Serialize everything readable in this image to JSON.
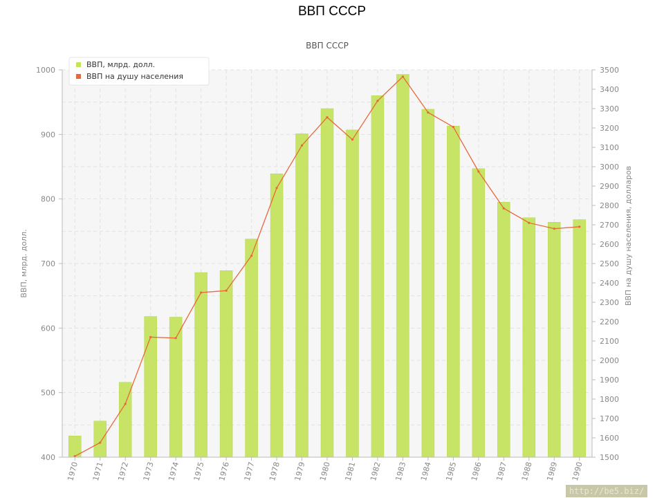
{
  "page_title": "ВВП СССР",
  "watermark": "http://be5.biz/",
  "colors": {
    "bar_fill": "#c4e35a",
    "bar_edge": "#b2d43e",
    "line": "#e8683a",
    "axis_text": "#888888",
    "grid": "#e2e2e2",
    "plot_bg": "#f6f6f6"
  },
  "chart_data": {
    "type": "bar",
    "title": "ВВП СССР",
    "categories": [
      "1970",
      "1971",
      "1972",
      "1973",
      "1974",
      "1975",
      "1976",
      "1977",
      "1978",
      "1979",
      "1980",
      "1981",
      "1982",
      "1983",
      "1984",
      "1985",
      "1986",
      "1987",
      "1988",
      "1989",
      "1990"
    ],
    "series": [
      {
        "name": "ВВП, млрд. долл.",
        "type": "bar",
        "axis": "left",
        "color": "#c4e35a",
        "values": [
          433,
          456,
          516,
          618,
          617,
          686,
          689,
          738,
          839,
          901,
          940,
          907,
          960,
          993,
          939,
          913,
          847,
          795,
          771,
          764,
          768
        ]
      },
      {
        "name": "ВВП на душу населения",
        "type": "line",
        "axis": "right",
        "color": "#e8683a",
        "values": [
          1505,
          1575,
          1775,
          2120,
          2115,
          2350,
          2360,
          2540,
          2890,
          3110,
          3255,
          3140,
          3340,
          3465,
          3280,
          3205,
          2975,
          2785,
          2710,
          2680,
          2690
        ]
      }
    ],
    "ylabel": "ВВП, млрд. долл.",
    "ylim": [
      400,
      1000
    ],
    "y_ticks": [
      400,
      500,
      600,
      700,
      800,
      900,
      1000
    ],
    "y2label": "ВВП на душу населения, долларов",
    "y2lim": [
      1500,
      3500
    ],
    "y2_ticks": [
      1500,
      1600,
      1700,
      1800,
      1900,
      2000,
      2100,
      2200,
      2300,
      2400,
      2500,
      2600,
      2700,
      2800,
      2900,
      3000,
      3100,
      3200,
      3300,
      3400,
      3500
    ],
    "grid": true,
    "legend_position": "top-left"
  }
}
